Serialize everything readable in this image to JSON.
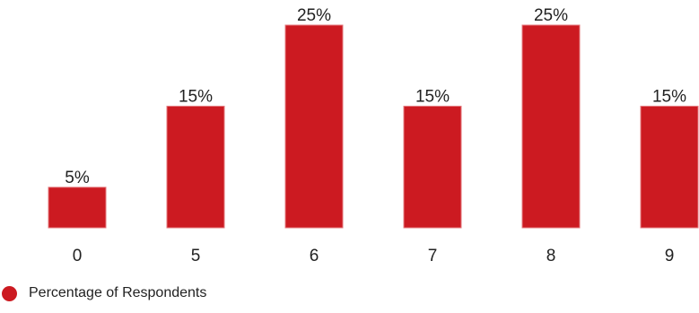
{
  "chart_data": {
    "type": "bar",
    "categories": [
      "0",
      "5",
      "6",
      "7",
      "8",
      "9"
    ],
    "series": [
      {
        "name": "Percentage of Respondents",
        "values": [
          5,
          15,
          25,
          15,
          25,
          15
        ]
      }
    ],
    "data_labels": [
      "5%",
      "15%",
      "25%",
      "15%",
      "25%",
      "15%"
    ],
    "title": "",
    "xlabel": "",
    "ylabel": "",
    "ylim": [
      0,
      25
    ],
    "grid": false,
    "legend_position": "bottom-left"
  },
  "colors": {
    "bar": "#cc1a21",
    "bar_edge": "#e47a7e",
    "text": "#222222"
  }
}
